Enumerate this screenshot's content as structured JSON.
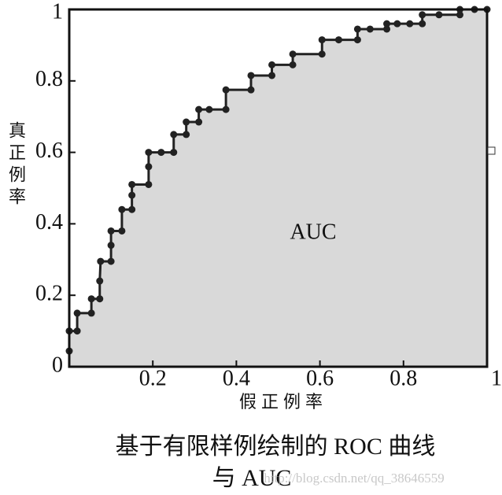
{
  "chart_data": {
    "type": "line",
    "x_label": "假正例率",
    "y_label": "真正例率",
    "annotation": "AUC",
    "caption": [
      "基于有限样例绘制的 ROC 曲线",
      "与 AUC"
    ],
    "watermark": "http://blog.csdn.net/qq_38646559",
    "xlim": [
      0,
      1
    ],
    "ylim": [
      0,
      1
    ],
    "xticks": [
      0.2,
      0.4,
      0.6,
      0.8,
      1
    ],
    "yticks": [
      0,
      0.2,
      0.4,
      0.6,
      0.8,
      1
    ],
    "color": "#222222",
    "area_color": "#d9d9d9",
    "x": [
      0,
      0,
      0.019,
      0.019,
      0.053,
      0.053,
      0.073,
      0.073,
      0.075,
      0.1,
      0.1,
      0.1,
      0.126,
      0.126,
      0.15,
      0.15,
      0.15,
      0.19,
      0.19,
      0.19,
      0.22,
      0.25,
      0.25,
      0.28,
      0.28,
      0.31,
      0.31,
      0.335,
      0.375,
      0.375,
      0.435,
      0.435,
      0.485,
      0.485,
      0.535,
      0.535,
      0.605,
      0.605,
      0.645,
      0.69,
      0.69,
      0.72,
      0.76,
      0.76,
      0.785,
      0.815,
      0.845,
      0.845,
      0.885,
      0.935,
      0.935,
      0.97,
      1
    ],
    "values": [
      0.044,
      0.1,
      0.1,
      0.15,
      0.15,
      0.19,
      0.19,
      0.24,
      0.295,
      0.295,
      0.34,
      0.38,
      0.38,
      0.44,
      0.44,
      0.48,
      0.51,
      0.51,
      0.56,
      0.6,
      0.6,
      0.6,
      0.65,
      0.65,
      0.685,
      0.685,
      0.72,
      0.72,
      0.72,
      0.775,
      0.775,
      0.815,
      0.815,
      0.845,
      0.845,
      0.875,
      0.875,
      0.915,
      0.915,
      0.915,
      0.945,
      0.945,
      0.945,
      0.96,
      0.96,
      0.96,
      0.96,
      0.985,
      0.985,
      0.985,
      1,
      1,
      1
    ]
  }
}
